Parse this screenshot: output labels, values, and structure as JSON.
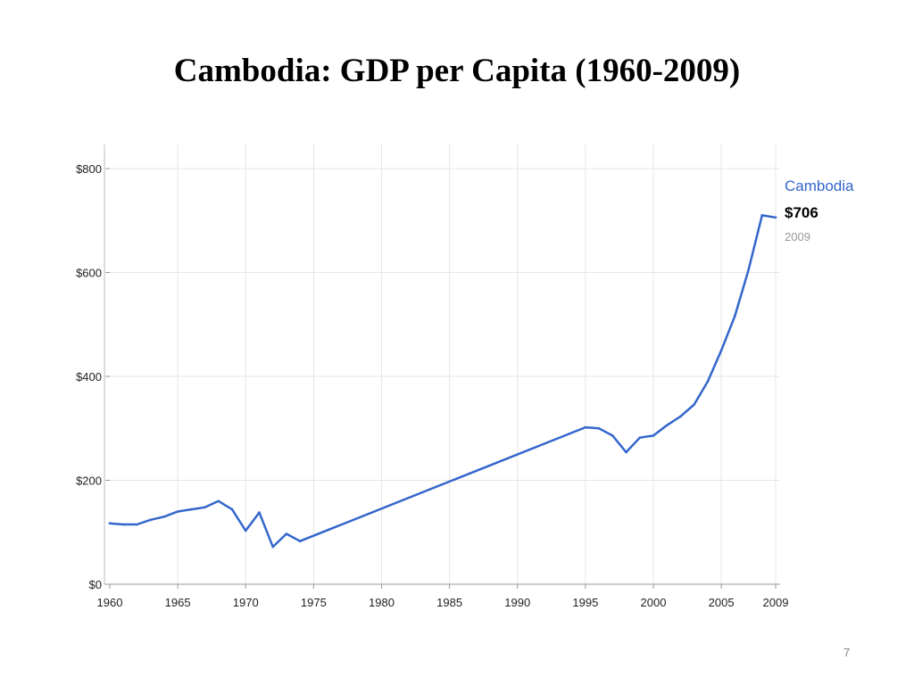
{
  "slide": {
    "title": "Cambodia: GDP per Capita (1960-2009)",
    "number": "7"
  },
  "chart_data": {
    "type": "line",
    "title": "",
    "xlabel": "",
    "ylabel": "",
    "xlim": [
      1960,
      2009
    ],
    "ylim": [
      0,
      800
    ],
    "grid": true,
    "x_ticks": [
      "1960",
      "1965",
      "1970",
      "1975",
      "1980",
      "1985",
      "1990",
      "1995",
      "2000",
      "2005",
      "2009"
    ],
    "y_ticks": [
      "$0",
      "$200",
      "$400",
      "$600",
      "$800"
    ],
    "legend": {
      "name": "Cambodia",
      "value": "$706",
      "year": "2009",
      "placement": "right"
    },
    "series": [
      {
        "name": "Cambodia",
        "color": "#3366cc",
        "x": [
          1960,
          1961,
          1962,
          1963,
          1964,
          1965,
          1966,
          1967,
          1968,
          1969,
          1970,
          1971,
          1972,
          1973,
          1974,
          1995,
          1996,
          1997,
          1998,
          1999,
          2000,
          2001,
          2002,
          2003,
          2004,
          2005,
          2006,
          2007,
          2008,
          2009
        ],
        "y": [
          117,
          115,
          115,
          124,
          130,
          140,
          144,
          148,
          160,
          144,
          103,
          138,
          72,
          97,
          83,
          302,
          300,
          286,
          254,
          282,
          286,
          306,
          323,
          346,
          390,
          450,
          516,
          605,
          710,
          706
        ]
      }
    ]
  }
}
